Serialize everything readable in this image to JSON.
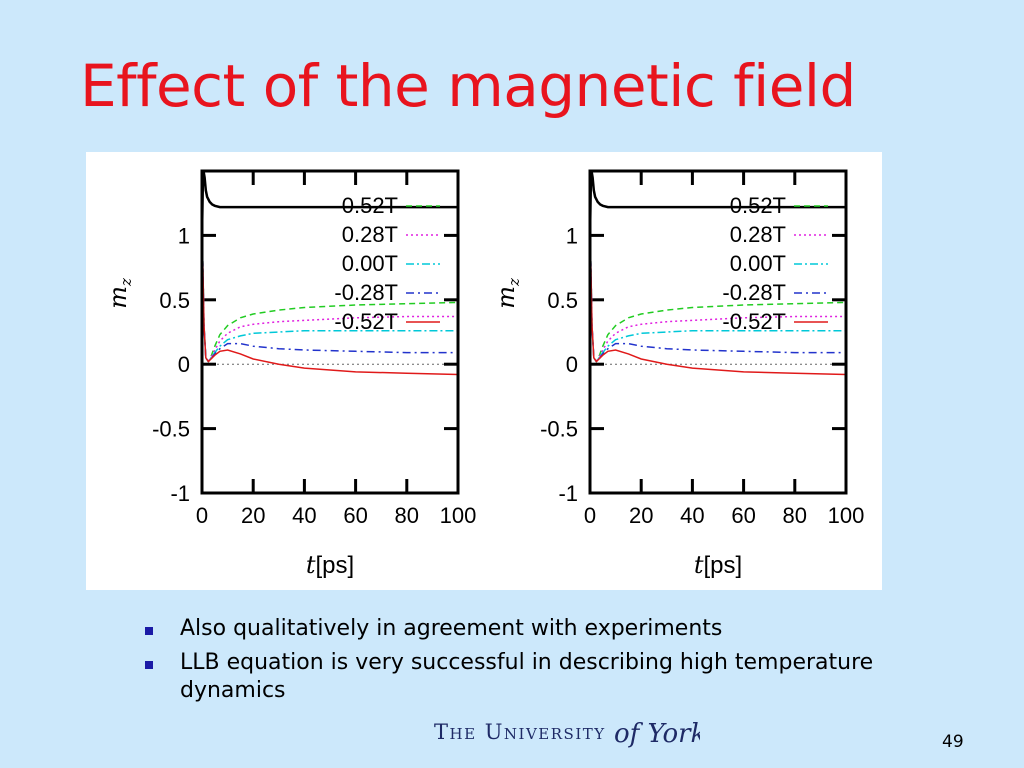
{
  "slide": {
    "title": "Effect of the magnetic field",
    "bullets": [
      "Also qualitatively in agreement with experiments",
      "LLB equation is very successful in describing high temperature dynamics"
    ],
    "logo_text": "The University",
    "logo_script_text": "of York",
    "page_number": "49"
  },
  "chart_data": [
    {
      "type": "line",
      "xlabel_italic": "t",
      "xlabel_unit": "[ps]",
      "ylabel_italic": "m",
      "ylabel_sub": "z",
      "xlim": [
        0,
        100
      ],
      "ylim": [
        -1,
        1.5
      ],
      "x_ticks": [
        "0",
        "20",
        "40",
        "60",
        "80",
        "100"
      ],
      "y_ticks": [
        "-1",
        "-0.5",
        "0",
        "0.5",
        "1"
      ],
      "legend_position": "top-right",
      "zero_line": true,
      "series": [
        {
          "name": "",
          "color": "#000000",
          "dash": "solid",
          "x": [
            0,
            0.3,
            0.6,
            1,
            1.5,
            2,
            3,
            4,
            5,
            7,
            10,
            20,
            100
          ],
          "y": [
            1.0,
            1.38,
            1.5,
            1.45,
            1.35,
            1.3,
            1.26,
            1.24,
            1.23,
            1.22,
            1.22,
            1.22,
            1.22
          ]
        },
        {
          "name": "0.52T",
          "color": "#22cc22",
          "dash": "6,4",
          "x": [
            0,
            0.3,
            0.8,
            1.5,
            2.5,
            3.5,
            5,
            7,
            10,
            15,
            20,
            30,
            40,
            60,
            80,
            100
          ],
          "y": [
            0.82,
            0.8,
            0.3,
            0.05,
            0.02,
            0.06,
            0.14,
            0.23,
            0.3,
            0.36,
            0.39,
            0.42,
            0.44,
            0.46,
            0.47,
            0.48
          ]
        },
        {
          "name": "0.28T",
          "color": "#e020e0",
          "dash": "2,3",
          "x": [
            0,
            0.3,
            0.8,
            1.5,
            2.5,
            3.5,
            5,
            7,
            10,
            15,
            20,
            30,
            40,
            60,
            80,
            100
          ],
          "y": [
            0.82,
            0.8,
            0.3,
            0.05,
            0.02,
            0.05,
            0.11,
            0.18,
            0.24,
            0.29,
            0.31,
            0.33,
            0.34,
            0.36,
            0.37,
            0.37
          ]
        },
        {
          "name": "0.00T",
          "color": "#00c8d8",
          "dash": "8,3,2,3",
          "x": [
            0,
            0.3,
            0.8,
            1.5,
            2.5,
            3.5,
            5,
            7,
            10,
            15,
            20,
            30,
            40,
            60,
            80,
            100
          ],
          "y": [
            0.82,
            0.8,
            0.3,
            0.05,
            0.02,
            0.05,
            0.09,
            0.14,
            0.19,
            0.22,
            0.24,
            0.25,
            0.26,
            0.26,
            0.26,
            0.26
          ]
        },
        {
          "name": "-0.28T",
          "color": "#2233cc",
          "dash": "8,4,2,4",
          "x": [
            0,
            0.3,
            0.8,
            1.5,
            2.5,
            3.5,
            5,
            7,
            10,
            15,
            20,
            30,
            40,
            60,
            80,
            100
          ],
          "y": [
            0.82,
            0.8,
            0.3,
            0.05,
            0.02,
            0.04,
            0.08,
            0.12,
            0.16,
            0.16,
            0.14,
            0.12,
            0.11,
            0.1,
            0.09,
            0.09
          ]
        },
        {
          "name": "-0.52T",
          "color": "#e01a1a",
          "dash": "solid",
          "x": [
            0,
            0.3,
            0.8,
            1.5,
            2.5,
            3.5,
            5,
            7,
            10,
            15,
            20,
            30,
            40,
            60,
            80,
            100
          ],
          "y": [
            0.82,
            0.8,
            0.3,
            0.05,
            0.02,
            0.04,
            0.07,
            0.1,
            0.11,
            0.08,
            0.04,
            0.0,
            -0.03,
            -0.06,
            -0.07,
            -0.08
          ]
        }
      ]
    },
    {
      "type": "line",
      "xlabel_italic": "t",
      "xlabel_unit": "[ps]",
      "ylabel_italic": "m",
      "ylabel_sub": "z",
      "xlim": [
        0,
        100
      ],
      "ylim": [
        -1,
        1.5
      ],
      "x_ticks": [
        "0",
        "20",
        "40",
        "60",
        "80",
        "100"
      ],
      "y_ticks": [
        "-1",
        "-0.5",
        "0",
        "0.5",
        "1"
      ],
      "legend_position": "top-right",
      "zero_line": true,
      "series": [
        {
          "name": "",
          "color": "#000000",
          "dash": "solid",
          "x": [
            0,
            0.3,
            0.6,
            1,
            1.5,
            2,
            3,
            4,
            5,
            7,
            10,
            20,
            100
          ],
          "y": [
            1.0,
            1.38,
            1.5,
            1.45,
            1.35,
            1.3,
            1.26,
            1.24,
            1.23,
            1.22,
            1.22,
            1.22,
            1.22
          ]
        },
        {
          "name": "0.52T",
          "color": "#22cc22",
          "dash": "6,4",
          "x": [
            0,
            0.3,
            0.8,
            1.5,
            2.5,
            3.5,
            5,
            7,
            10,
            15,
            20,
            30,
            40,
            60,
            80,
            100
          ],
          "y": [
            0.82,
            0.8,
            0.3,
            0.05,
            0.02,
            0.06,
            0.14,
            0.23,
            0.3,
            0.36,
            0.39,
            0.42,
            0.44,
            0.46,
            0.47,
            0.48
          ]
        },
        {
          "name": "0.28T",
          "color": "#e020e0",
          "dash": "2,3",
          "x": [
            0,
            0.3,
            0.8,
            1.5,
            2.5,
            3.5,
            5,
            7,
            10,
            15,
            20,
            30,
            40,
            60,
            80,
            100
          ],
          "y": [
            0.82,
            0.8,
            0.3,
            0.05,
            0.02,
            0.05,
            0.11,
            0.18,
            0.24,
            0.29,
            0.31,
            0.33,
            0.34,
            0.36,
            0.37,
            0.37
          ]
        },
        {
          "name": "0.00T",
          "color": "#00c8d8",
          "dash": "8,3,2,3",
          "x": [
            0,
            0.3,
            0.8,
            1.5,
            2.5,
            3.5,
            5,
            7,
            10,
            15,
            20,
            30,
            40,
            60,
            80,
            100
          ],
          "y": [
            0.82,
            0.8,
            0.3,
            0.05,
            0.02,
            0.05,
            0.09,
            0.14,
            0.19,
            0.22,
            0.24,
            0.25,
            0.26,
            0.26,
            0.26,
            0.26
          ]
        },
        {
          "name": "-0.28T",
          "color": "#2233cc",
          "dash": "8,4,2,4",
          "x": [
            0,
            0.3,
            0.8,
            1.5,
            2.5,
            3.5,
            5,
            7,
            10,
            15,
            20,
            30,
            40,
            60,
            80,
            100
          ],
          "y": [
            0.82,
            0.8,
            0.3,
            0.05,
            0.02,
            0.04,
            0.08,
            0.12,
            0.16,
            0.16,
            0.14,
            0.12,
            0.11,
            0.1,
            0.09,
            0.09
          ]
        },
        {
          "name": "-0.52T",
          "color": "#e01a1a",
          "dash": "solid",
          "x": [
            0,
            0.3,
            0.8,
            1.5,
            2.5,
            3.5,
            5,
            7,
            10,
            15,
            20,
            30,
            40,
            60,
            80,
            100
          ],
          "y": [
            0.82,
            0.8,
            0.3,
            0.05,
            0.02,
            0.04,
            0.07,
            0.1,
            0.11,
            0.08,
            0.04,
            0.0,
            -0.03,
            -0.06,
            -0.07,
            -0.08
          ]
        }
      ]
    }
  ]
}
